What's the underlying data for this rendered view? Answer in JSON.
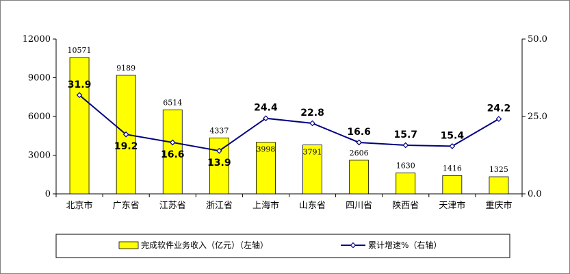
{
  "chart_data": {
    "type": "bar",
    "categories": [
      "北京市",
      "广东省",
      "江苏省",
      "浙江省",
      "上海市",
      "山东省",
      "四川省",
      "陕西省",
      "天津市",
      "重庆市"
    ],
    "series": [
      {
        "name": "完成软件业务收入（亿元）（左轴）",
        "type": "bar",
        "axis": "left",
        "values": [
          10571,
          9189,
          6514,
          4337,
          3998,
          3791,
          2606,
          1630,
          1416,
          1325
        ],
        "value_labels": [
          "10571",
          "9189",
          "6514",
          "4337",
          "3998",
          "3791",
          "2606",
          "1630",
          "1416",
          "1325"
        ],
        "color": "#ffff00"
      },
      {
        "name": "累计增速%（右轴）",
        "type": "line",
        "axis": "right",
        "values": [
          31.9,
          19.2,
          16.6,
          13.9,
          24.4,
          22.8,
          16.6,
          15.7,
          15.4,
          24.2
        ],
        "value_labels": [
          "31.9",
          "19.2",
          "16.6",
          "13.9",
          "24.4",
          "22.8",
          "16.6",
          "15.7",
          "15.4",
          "24.2"
        ],
        "color": "#000080"
      }
    ],
    "y_left": {
      "ylim": [
        0,
        12000
      ],
      "ticks": [
        "0",
        "3000",
        "6000",
        "9000",
        "12000"
      ],
      "tick_values": [
        0,
        3000,
        6000,
        9000,
        12000
      ]
    },
    "y_right": {
      "ylim": [
        0,
        50
      ],
      "ticks": [
        "0.0",
        "25.0",
        "50.0"
      ],
      "tick_values": [
        0,
        25,
        50
      ]
    },
    "grid": false,
    "legend_position": "bottom"
  }
}
